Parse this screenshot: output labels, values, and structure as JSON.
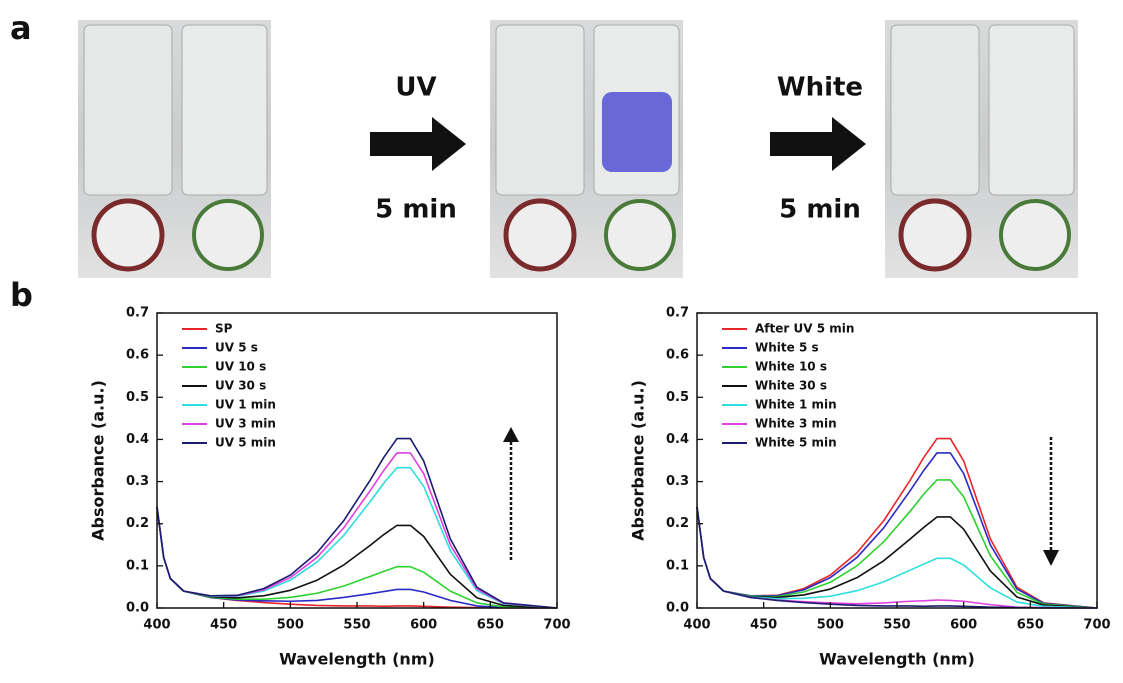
{
  "figure": {
    "panel_a": {
      "label": "a",
      "steps": [
        {
          "top": "UV",
          "bottom": "5 min"
        },
        {
          "top": "White",
          "bottom": "5 min"
        }
      ]
    },
    "panel_b": {
      "label": "b"
    }
  },
  "chart_data": [
    {
      "type": "line",
      "xlabel": "Wavelength (nm)",
      "ylabel": "Absorbance (a.u.)",
      "legend": "upper left",
      "xlim": [
        400,
        700
      ],
      "ylim": [
        0,
        0.7
      ],
      "xticks": [
        400,
        450,
        500,
        550,
        600,
        650,
        700
      ],
      "yticks": [
        {
          "value": 0,
          "label": "0.0"
        },
        0.1,
        0.2,
        0.3,
        0.4,
        0.5,
        0.6,
        0.7
      ],
      "x": [
        400,
        405,
        410,
        420,
        440,
        460,
        480,
        500,
        520,
        540,
        560,
        570,
        580,
        590,
        600,
        620,
        640,
        660,
        700
      ],
      "series": [
        {
          "name": "SP",
          "color": "#e8262a",
          "values": [
            0.24,
            0.12,
            0.07,
            0.04,
            0.025,
            0.018,
            0.013,
            0.009,
            0.006,
            0.005,
            0.005,
            0.004,
            0.005,
            0.005,
            0.004,
            0.002,
            0.001,
            0,
            0
          ]
        },
        {
          "name": "UV 5 s",
          "color": "#2b2bc4",
          "values": [
            0.24,
            0.12,
            0.07,
            0.04,
            0.025,
            0.019,
            0.017,
            0.016,
            0.018,
            0.025,
            0.034,
            0.039,
            0.044,
            0.044,
            0.038,
            0.018,
            0.005,
            0.001,
            0
          ]
        },
        {
          "name": "UV 10 s",
          "color": "#2ed12e",
          "values": [
            0.24,
            0.12,
            0.07,
            0.04,
            0.026,
            0.021,
            0.021,
            0.025,
            0.035,
            0.052,
            0.075,
            0.087,
            0.098,
            0.098,
            0.085,
            0.04,
            0.012,
            0.003,
            0
          ]
        },
        {
          "name": "UV 30 s",
          "color": "#111111",
          "values": [
            0.24,
            0.12,
            0.07,
            0.04,
            0.027,
            0.024,
            0.029,
            0.042,
            0.066,
            0.102,
            0.149,
            0.174,
            0.196,
            0.196,
            0.17,
            0.08,
            0.024,
            0.006,
            0
          ]
        },
        {
          "name": "UV 1 min",
          "color": "#2fdede",
          "values": [
            0.24,
            0.12,
            0.07,
            0.04,
            0.028,
            0.028,
            0.04,
            0.066,
            0.109,
            0.172,
            0.253,
            0.296,
            0.333,
            0.333,
            0.289,
            0.136,
            0.041,
            0.01,
            0
          ]
        },
        {
          "name": "UV 3 min",
          "color": "#e040e0",
          "values": [
            0.24,
            0.12,
            0.07,
            0.04,
            0.029,
            0.029,
            0.043,
            0.072,
            0.12,
            0.19,
            0.279,
            0.326,
            0.368,
            0.368,
            0.319,
            0.15,
            0.045,
            0.011,
            0
          ]
        },
        {
          "name": "UV 5 min",
          "color": "#1c1c70",
          "values": [
            0.24,
            0.12,
            0.07,
            0.04,
            0.029,
            0.03,
            0.046,
            0.078,
            0.131,
            0.207,
            0.304,
            0.357,
            0.402,
            0.402,
            0.349,
            0.164,
            0.049,
            0.012,
            0
          ]
        }
      ]
    },
    {
      "type": "line",
      "xlabel": "Wavelength (nm)",
      "ylabel": "Absorbance (a.u.)",
      "legend": "upper left",
      "xlim": [
        400,
        700
      ],
      "ylim": [
        0,
        0.7
      ],
      "xticks": [
        400,
        450,
        500,
        550,
        600,
        650,
        700
      ],
      "yticks": [
        {
          "value": 0,
          "label": "0.0"
        },
        0.1,
        0.2,
        0.3,
        0.4,
        0.5,
        0.6,
        0.7
      ],
      "x": [
        400,
        405,
        410,
        420,
        440,
        460,
        480,
        500,
        520,
        540,
        560,
        570,
        580,
        590,
        600,
        620,
        640,
        660,
        700
      ],
      "series": [
        {
          "name": "After UV 5 min",
          "color": "#e8262a",
          "values": [
            0.24,
            0.12,
            0.07,
            0.04,
            0.029,
            0.03,
            0.046,
            0.078,
            0.131,
            0.207,
            0.304,
            0.357,
            0.402,
            0.402,
            0.349,
            0.164,
            0.049,
            0.012,
            0
          ]
        },
        {
          "name": "White 5 s",
          "color": "#2b2bc4",
          "values": [
            0.24,
            0.12,
            0.07,
            0.04,
            0.029,
            0.029,
            0.043,
            0.072,
            0.12,
            0.19,
            0.279,
            0.326,
            0.368,
            0.368,
            0.319,
            0.15,
            0.045,
            0.011,
            0
          ]
        },
        {
          "name": "White 10 s",
          "color": "#2ed12e",
          "values": [
            0.24,
            0.12,
            0.07,
            0.04,
            0.028,
            0.027,
            0.038,
            0.061,
            0.1,
            0.157,
            0.23,
            0.27,
            0.304,
            0.304,
            0.264,
            0.124,
            0.037,
            0.009,
            0
          ]
        },
        {
          "name": "White 30 s",
          "color": "#111111",
          "values": [
            0.24,
            0.12,
            0.07,
            0.04,
            0.027,
            0.025,
            0.031,
            0.045,
            0.072,
            0.112,
            0.164,
            0.191,
            0.216,
            0.216,
            0.187,
            0.088,
            0.026,
            0.007,
            0
          ]
        },
        {
          "name": "White 1 min",
          "color": "#2fdede",
          "values": [
            0.24,
            0.12,
            0.07,
            0.04,
            0.026,
            0.022,
            0.023,
            0.028,
            0.041,
            0.062,
            0.09,
            0.104,
            0.118,
            0.118,
            0.102,
            0.048,
            0.014,
            0.004,
            0
          ]
        },
        {
          "name": "White 3 min",
          "color": "#e040e0",
          "values": [
            0.24,
            0.12,
            0.07,
            0.04,
            0.025,
            0.019,
            0.015,
            0.012,
            0.01,
            0.012,
            0.016,
            0.017,
            0.019,
            0.018,
            0.016,
            0.008,
            0.002,
            0.001,
            0
          ]
        },
        {
          "name": "White 5 min",
          "color": "#1c1c70",
          "values": [
            0.24,
            0.12,
            0.07,
            0.04,
            0.025,
            0.018,
            0.013,
            0.009,
            0.006,
            0.005,
            0.005,
            0.004,
            0.005,
            0.005,
            0.004,
            0.002,
            0.001,
            0,
            0
          ]
        }
      ]
    }
  ]
}
